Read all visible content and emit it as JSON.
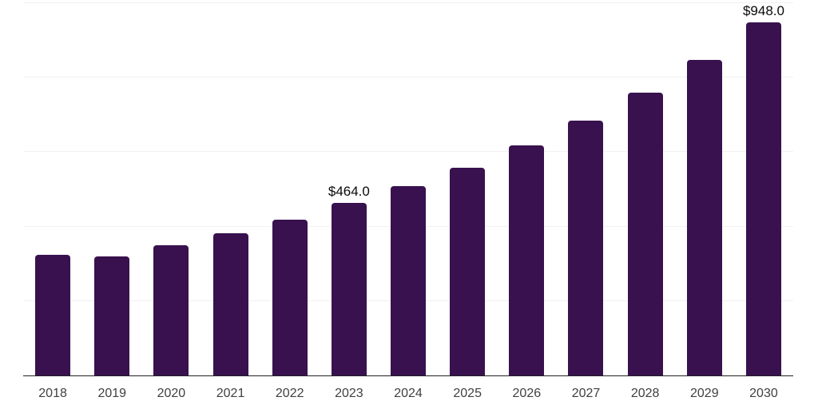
{
  "chart_data": {
    "type": "bar",
    "title": "",
    "xlabel": "",
    "ylabel": "",
    "categories": [
      "2018",
      "2019",
      "2020",
      "2021",
      "2022",
      "2023",
      "2024",
      "2025",
      "2026",
      "2027",
      "2028",
      "2029",
      "2030"
    ],
    "values": [
      324,
      320,
      349,
      383,
      419,
      464,
      508,
      558,
      618,
      684,
      759,
      848,
      948
    ],
    "value_labels": {
      "2023": "$464.0",
      "2030": "$948.0"
    },
    "ylim": [
      0,
      1000
    ],
    "grid_values": [
      200,
      400,
      600,
      800,
      1000
    ],
    "grid": "horizontal",
    "legend": "none",
    "y_axis_ticks_visible": false
  },
  "style": {
    "bar_color": "#38114E",
    "grid_color": "#f1f1f1",
    "axis_color": "#222222",
    "tick_label_color": "#404040",
    "data_label_color": "#0a0a0a",
    "background": "#ffffff"
  }
}
